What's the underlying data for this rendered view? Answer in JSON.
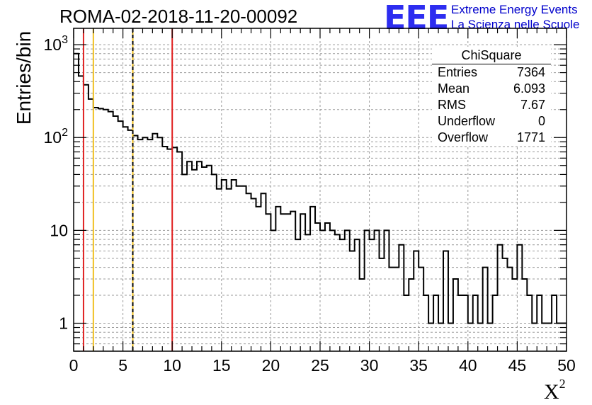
{
  "title": "ROMA-02-2018-11-20-00092",
  "logo": {
    "text": "EEE",
    "line1": "Extreme Energy Events",
    "line2": "La Scienza nelle Scuole",
    "color": "#2d2df0"
  },
  "stats": {
    "title": "ChiSquare",
    "rows": [
      {
        "label": "Entries",
        "value": "7364"
      },
      {
        "label": "Mean",
        "value": "6.093"
      },
      {
        "label": "RMS",
        "value": "7.67"
      },
      {
        "label": "Underflow",
        "value": "0"
      },
      {
        "label": "Overflow",
        "value": "1771"
      }
    ]
  },
  "chart_data": {
    "type": "histogram",
    "title": "ROMA-02-2018-11-20-00092",
    "xlabel": "X",
    "xlabel_sup": "2",
    "ylabel": "Entries/bin",
    "xlim": [
      0,
      50
    ],
    "ylim": [
      0.5,
      1500
    ],
    "y_scale": "log",
    "grid": true,
    "bin_width": 0.5,
    "x_ticks": [
      "0",
      "5",
      "10",
      "15",
      "20",
      "25",
      "30",
      "35",
      "40",
      "45",
      "50"
    ],
    "y_ticks": [
      {
        "value": 1,
        "label": "1"
      },
      {
        "value": 10,
        "label": "10"
      },
      {
        "value": 100,
        "label": "10",
        "sup": "2"
      },
      {
        "value": 1000,
        "label": "10",
        "sup": "3"
      }
    ],
    "values": [
      800,
      460,
      370,
      260,
      210,
      205,
      200,
      190,
      170,
      150,
      130,
      120,
      105,
      95,
      100,
      95,
      110,
      100,
      80,
      75,
      78,
      70,
      40,
      55,
      45,
      55,
      48,
      50,
      40,
      28,
      35,
      28,
      35,
      30,
      30,
      25,
      22,
      18,
      25,
      15,
      10,
      18,
      15,
      15,
      16,
      8,
      15,
      9,
      18,
      12,
      10,
      12,
      10,
      9,
      8,
      10,
      6,
      8,
      3,
      10,
      8,
      10,
      5,
      10,
      4,
      4,
      7,
      2,
      3,
      6,
      4,
      2,
      1,
      2,
      1,
      6,
      1,
      3,
      2,
      2,
      1,
      2,
      1,
      4,
      1,
      2,
      7,
      5,
      4,
      3,
      7,
      3,
      2,
      1,
      2,
      1,
      1,
      2,
      1,
      1
    ],
    "vertical_lines": [
      {
        "x": 1,
        "color": "#e02020",
        "style": "solid"
      },
      {
        "x": 2,
        "color": "#f0c020",
        "style": "solid"
      },
      {
        "x": 6,
        "color": "#f0c020",
        "style": "solid"
      },
      {
        "x": 6,
        "color": "#000000",
        "style": "dashed"
      },
      {
        "x": 10,
        "color": "#e02020",
        "style": "solid"
      }
    ]
  }
}
